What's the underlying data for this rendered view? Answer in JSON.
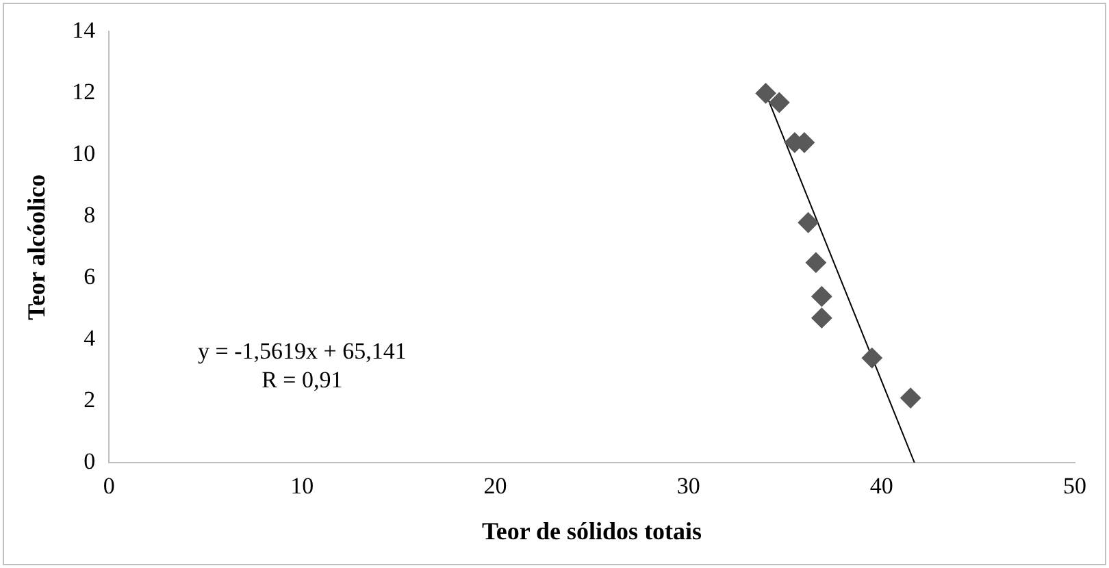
{
  "chart_data": {
    "type": "scatter",
    "xlabel": "Teor de sólidos totais",
    "ylabel": "Teor alcóolico",
    "annotations": [
      "y = -1,5619x + 65,141",
      "R = 0,91"
    ],
    "xlim": [
      0,
      50
    ],
    "xticks": [
      0,
      10,
      20,
      30,
      40,
      50
    ],
    "ylim": [
      0,
      14
    ],
    "yticks": [
      0,
      2,
      4,
      6,
      8,
      10,
      12,
      14
    ],
    "grid": false,
    "legend": false,
    "marker": "diamond",
    "series": [
      {
        "color": "#595959",
        "x": [
          34.0,
          34.7,
          35.5,
          36.0,
          36.2,
          36.6,
          36.9,
          36.9,
          39.5,
          41.5
        ],
        "values": [
          12.0,
          11.7,
          10.4,
          10.4,
          7.8,
          6.5,
          5.4,
          4.7,
          3.4,
          2.1
        ]
      },
      {
        "type": "line",
        "color": "#000000",
        "marker": "none",
        "line_style": "solid",
        "x": [
          34.0,
          41.7
        ],
        "values": [
          12.0,
          0.0
        ]
      }
    ]
  }
}
